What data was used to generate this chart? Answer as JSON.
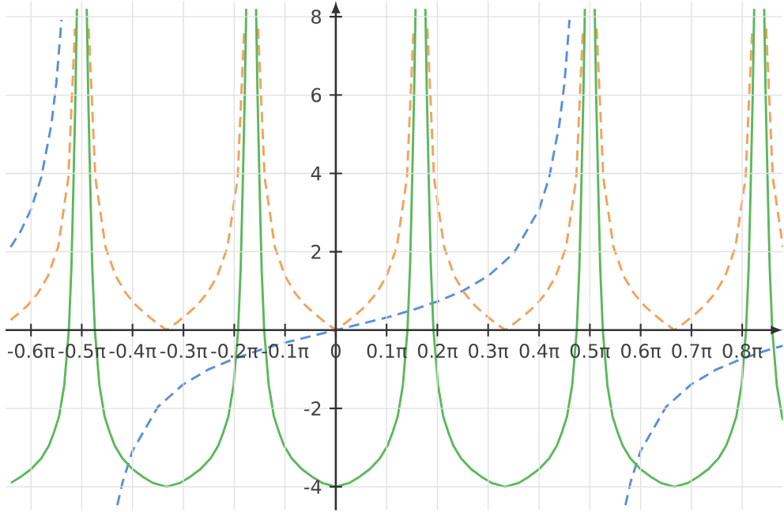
{
  "chart_data": {
    "type": "line",
    "xlim": [
      -2.042,
      2.765
    ],
    "ylim": [
      -4.6,
      8.4
    ],
    "xticks": [
      {
        "value": -1.885,
        "label": "-0.6π"
      },
      {
        "value": -1.571,
        "label": "-0.5π"
      },
      {
        "value": -1.257,
        "label": "-0.4π"
      },
      {
        "value": -0.942,
        "label": "-0.3π"
      },
      {
        "value": -0.628,
        "label": "-0.2π"
      },
      {
        "value": -0.314,
        "label": "-0.1π"
      },
      0,
      {
        "value": 0.314,
        "label": "0.1π"
      },
      {
        "value": 0.628,
        "label": "0.2π"
      },
      {
        "value": 0.942,
        "label": "0.3π"
      },
      {
        "value": 1.257,
        "label": "0.4π"
      },
      {
        "value": 1.571,
        "label": "0.5π"
      },
      {
        "value": 1.885,
        "label": "0.6π"
      },
      {
        "value": 2.199,
        "label": "0.7π"
      },
      {
        "value": 2.513,
        "label": "0.8π"
      }
    ],
    "yticks": [
      -4,
      -2,
      2,
      4,
      6,
      8
    ],
    "grid": true,
    "marker": "none",
    "series": [
      {
        "color": "#5b8ee0",
        "line_style": "dashed",
        "x": [
          -2.011,
          -1.948,
          -1.885,
          -1.822,
          -1.759,
          -1.728,
          -1.696,
          -1.571,
          -1.351,
          -1.319,
          -1.257,
          -1.1,
          -0.942,
          -0.785,
          -0.628,
          -0.471,
          -0.314,
          -0.157,
          0,
          0.157,
          0.314,
          0.471,
          0.628,
          0.785,
          0.942,
          1.1,
          1.257,
          1.319,
          1.382,
          1.414,
          1.445,
          1.571,
          1.791,
          1.822,
          1.885,
          2.042,
          2.199,
          2.356,
          2.513,
          2.67,
          2.765
        ],
        "values": [
          2.12,
          2.53,
          3.08,
          3.89,
          5.24,
          6.31,
          7.92,
          null,
          -4.47,
          -3.89,
          -3.08,
          -1.96,
          -1.38,
          -1,
          -0.73,
          -0.51,
          -0.32,
          -0.16,
          0,
          0.16,
          0.32,
          0.51,
          0.73,
          1,
          1.38,
          1.96,
          3.08,
          3.89,
          5.24,
          6.31,
          7.92,
          null,
          -4.47,
          -3.89,
          -3.08,
          -1.96,
          -1.38,
          -1,
          -0.73,
          -0.51,
          -0.4
        ]
      },
      {
        "color": "#f4a15d",
        "line_style": "dashed",
        "x": [
          -2.011,
          -1.968,
          -1.906,
          -1.843,
          -1.78,
          -1.717,
          -1.654,
          -1.613,
          -1.571,
          -1.528,
          -1.487,
          -1.424,
          -1.361,
          -1.298,
          -1.235,
          -1.173,
          -1.11,
          -1.047,
          -0.984,
          -0.921,
          -0.859,
          -0.796,
          -0.733,
          -0.67,
          -0.607,
          -0.566,
          -0.524,
          -0.481,
          -0.44,
          -0.377,
          -0.314,
          -0.251,
          -0.188,
          -0.126,
          -0.063,
          0,
          0.063,
          0.126,
          0.188,
          0.251,
          0.314,
          0.377,
          0.44,
          0.481,
          0.524,
          0.566,
          0.607,
          0.67,
          0.733,
          0.796,
          0.859,
          0.921,
          0.984,
          1.047,
          1.11,
          1.173,
          1.235,
          1.298,
          1.361,
          1.424,
          1.487,
          1.528,
          1.571,
          1.613,
          1.654,
          1.717,
          1.78,
          1.843,
          1.906,
          1.968,
          2.031,
          2.094,
          2.157,
          2.22,
          2.282,
          2.345,
          2.408,
          2.471,
          2.534,
          2.575,
          2.618,
          2.661,
          2.702,
          2.765
        ],
        "values": [
          0.26,
          0.4,
          0.63,
          0.94,
          1.38,
          2.12,
          3.89,
          7.7,
          null,
          7.7,
          3.89,
          2.12,
          1.38,
          0.94,
          0.63,
          0.4,
          0.19,
          0,
          0.19,
          0.4,
          0.63,
          0.94,
          1.38,
          2.12,
          3.89,
          7.7,
          null,
          7.7,
          3.89,
          2.12,
          1.38,
          0.94,
          0.63,
          0.4,
          0.19,
          0,
          0.19,
          0.4,
          0.63,
          0.94,
          1.38,
          2.12,
          3.89,
          7.7,
          null,
          7.7,
          3.89,
          2.12,
          1.38,
          0.94,
          0.63,
          0.4,
          0.19,
          0,
          0.19,
          0.4,
          0.63,
          0.94,
          1.38,
          2.12,
          3.89,
          7.7,
          null,
          7.7,
          3.89,
          2.12,
          1.38,
          0.94,
          0.63,
          0.4,
          0.19,
          0,
          0.19,
          0.4,
          0.63,
          0.94,
          1.38,
          2.12,
          3.89,
          7.7,
          null,
          7.7,
          3.89,
          2.12
        ]
      },
      {
        "color": "#5cb85c",
        "line_style": "solid",
        "x": [
          -2.009,
          -1.946,
          -1.884,
          -1.821,
          -1.774,
          -1.742,
          -1.711,
          -1.679,
          -1.651,
          -1.635,
          -1.623,
          -1.61,
          -1.601,
          -1.571,
          -1.54,
          -1.531,
          -1.518,
          -1.506,
          -1.49,
          -1.462,
          -1.43,
          -1.399,
          -1.367,
          -1.32,
          -1.257,
          -1.195,
          -1.132,
          -1.047,
          -0.962,
          -0.899,
          -0.837,
          -0.774,
          -0.727,
          -0.695,
          -0.664,
          -0.632,
          -0.604,
          -0.588,
          -0.576,
          -0.563,
          -0.554,
          -0.524,
          -0.493,
          -0.484,
          -0.471,
          -0.459,
          -0.443,
          -0.415,
          -0.383,
          -0.352,
          -0.32,
          -0.273,
          -0.21,
          -0.148,
          -0.085,
          0,
          0.085,
          0.148,
          0.21,
          0.273,
          0.32,
          0.352,
          0.383,
          0.415,
          0.443,
          0.459,
          0.471,
          0.484,
          0.493,
          0.524,
          0.554,
          0.563,
          0.576,
          0.588,
          0.604,
          0.632,
          0.664,
          0.695,
          0.727,
          0.774,
          0.837,
          0.899,
          0.962,
          1.047,
          1.132,
          1.195,
          1.257,
          1.32,
          1.367,
          1.399,
          1.43,
          1.462,
          1.49,
          1.506,
          1.518,
          1.531,
          1.54,
          1.571,
          1.601,
          1.61,
          1.623,
          1.635,
          1.651,
          1.679,
          1.711,
          1.742,
          1.774,
          1.821,
          1.884,
          1.946,
          2.009,
          2.094,
          2.179,
          2.242,
          2.304,
          2.367,
          2.414,
          2.446,
          2.477,
          2.509,
          2.537,
          2.553,
          2.565,
          2.578,
          2.587,
          2.618,
          2.649,
          2.658,
          2.671,
          2.683,
          2.699,
          2.727,
          2.759,
          2.765
        ],
        "values": [
          -3.9,
          -3.74,
          -3.55,
          -3.27,
          -2.95,
          -2.6,
          -2.2,
          -1.4,
          0,
          1.6,
          3.6,
          6.0,
          8.2,
          null,
          8.2,
          6.0,
          3.6,
          1.6,
          0,
          -1.4,
          -2.2,
          -2.6,
          -2.95,
          -3.27,
          -3.55,
          -3.74,
          -3.9,
          -4,
          -3.9,
          -3.74,
          -3.55,
          -3.27,
          -2.95,
          -2.6,
          -2.2,
          -1.4,
          0,
          1.6,
          3.6,
          6.0,
          8.2,
          null,
          8.2,
          6.0,
          3.6,
          1.6,
          0,
          -1.4,
          -2.2,
          -2.6,
          -2.95,
          -3.27,
          -3.55,
          -3.74,
          -3.9,
          -4,
          -3.9,
          -3.74,
          -3.55,
          -3.27,
          -2.95,
          -2.6,
          -2.2,
          -1.4,
          0,
          1.6,
          3.6,
          6.0,
          8.2,
          null,
          8.2,
          6.0,
          3.6,
          1.6,
          0,
          -1.4,
          -2.2,
          -2.6,
          -2.95,
          -3.27,
          -3.55,
          -3.74,
          -3.9,
          -4,
          -3.9,
          -3.74,
          -3.55,
          -3.27,
          -2.95,
          -2.6,
          -2.2,
          -1.4,
          0,
          1.6,
          3.6,
          6.0,
          8.2,
          null,
          8.2,
          6.0,
          3.6,
          1.6,
          0,
          -1.4,
          -2.2,
          -2.6,
          -2.95,
          -3.27,
          -3.55,
          -3.74,
          -3.9,
          -4,
          -3.9,
          -3.74,
          -3.55,
          -3.27,
          -2.95,
          -2.6,
          -2.2,
          -1.4,
          0,
          1.6,
          3.6,
          6.0,
          8.2,
          null,
          8.2,
          6.0,
          3.6,
          1.6,
          0,
          -1.4,
          -2.2,
          -2.3
        ]
      }
    ]
  }
}
